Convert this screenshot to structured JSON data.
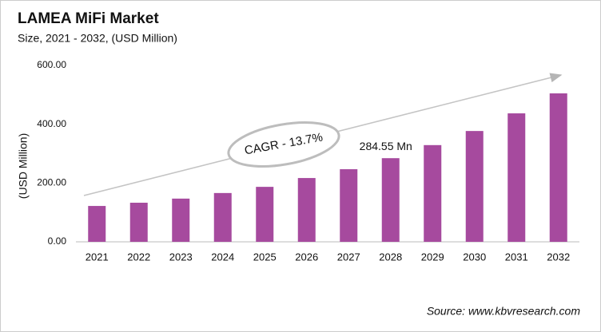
{
  "chart_data": {
    "type": "bar",
    "title": "LAMEA MiFi Market",
    "subtitle": "Size, 2021 - 2032, (USD Million)",
    "y_label": "(USD Million)",
    "source": "Source: www.kbvresearch.com",
    "annotation": "CAGR - 13.7%",
    "categories": [
      "2021",
      "2022",
      "2023",
      "2024",
      "2025",
      "2026",
      "2027",
      "2028",
      "2029",
      "2030",
      "2031",
      "2032"
    ],
    "values": [
      122,
      133,
      147,
      166,
      187,
      217,
      247,
      284.55,
      329,
      377,
      437,
      505
    ],
    "value_labels": [
      null,
      null,
      null,
      null,
      null,
      null,
      null,
      "284.55 Mn",
      null,
      null,
      null,
      null
    ],
    "color": "#a64a9e",
    "ylim": [
      0,
      600
    ],
    "yticks": [
      {
        "value": 0,
        "label": "0.00"
      },
      {
        "value": 200,
        "label": "200.00"
      },
      {
        "value": 400,
        "label": "400.00"
      },
      {
        "value": 600,
        "label": "600.00"
      }
    ],
    "grid": false
  }
}
